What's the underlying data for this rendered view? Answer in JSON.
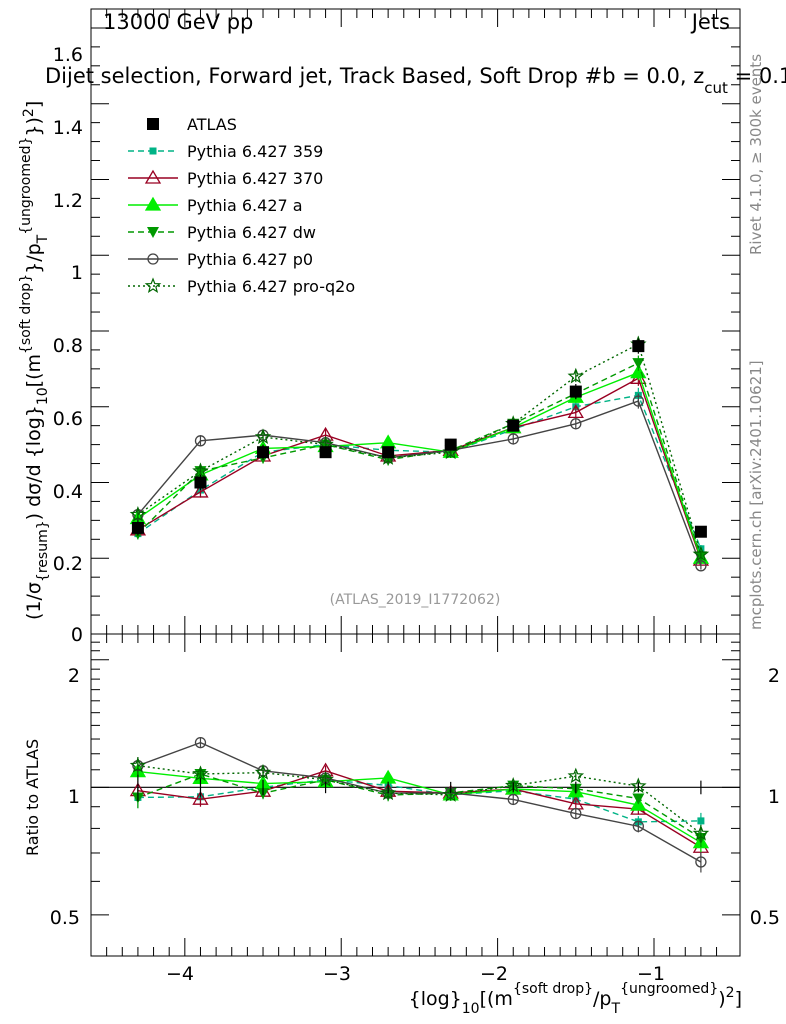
{
  "header": {
    "energy_label": "13000 GeV pp",
    "process_label": "Jets",
    "title": "Dijet selection, Forward jet, Track Based, Soft Drop #b = 0.0, z",
    "title_sub": "cut",
    "title_tail": " = 0.1",
    "analysis_id": "(ATLAS_2019_I1772062)"
  },
  "side_labels": {
    "rivet": "Rivet 4.1.0, ≥ 300k events",
    "mcplots": "mcplots.cern.ch [arXiv:2401.10621]"
  },
  "axes": {
    "xlabel": "{log}10[(m{soft drop}/pT{ungroomed})2]",
    "ylabel_main": "(1/σ{resum}) dσ/d {log}10[(m{soft drop}/pT{ungroomed})2]",
    "ylabel_ratio": "Ratio to ATLAS",
    "xticks": [
      "−4",
      "−3",
      "−2",
      "−1"
    ],
    "yticks_main": [
      "0",
      "0.2",
      "0.4",
      "0.6",
      "0.8",
      "1",
      "1.2",
      "1.4",
      "1.6"
    ],
    "yticks_ratio": [
      "0.5",
      "1",
      "2"
    ]
  },
  "colors": {
    "atlas": "#000000",
    "p359": "#00b386",
    "p370": "#990022",
    "pa": "#00ee00",
    "pdw": "#009900",
    "pp0": "#444444",
    "pq2o": "#006600"
  },
  "chart_data": {
    "type": "line",
    "title": "Dijet selection, Forward jet, Track Based, Soft Drop #b = 0.0, zcut = 0.1",
    "x": [
      -4.3,
      -3.9,
      -3.5,
      -3.1,
      -2.7,
      -2.3,
      -1.9,
      -1.5,
      -1.1,
      -0.7
    ],
    "xlim": [
      -4.6,
      -0.45
    ],
    "ylim_main": [
      0,
      1.65
    ],
    "ylim_ratio": [
      0.4,
      2.3
    ],
    "series": [
      {
        "name": "ATLAS",
        "key": "atlas",
        "values": [
          0.28,
          0.4,
          0.48,
          0.48,
          0.48,
          0.5,
          0.55,
          0.64,
          0.76,
          0.27
        ],
        "err": [
          0.02,
          0.02,
          0.02,
          0.015,
          0.015,
          0.015,
          0.015,
          0.02,
          0.02,
          0.01
        ]
      },
      {
        "name": "Pythia 6.427 359",
        "key": "p359",
        "values": [
          0.265,
          0.38,
          0.48,
          0.5,
          0.485,
          0.48,
          0.54,
          0.6,
          0.63,
          0.225
        ],
        "err": [
          0.015,
          0.015,
          0.015,
          0.015,
          0.015,
          0.015,
          0.015,
          0.015,
          0.02,
          0.01
        ]
      },
      {
        "name": "Pythia 6.427 370",
        "key": "p370",
        "values": [
          0.275,
          0.375,
          0.47,
          0.525,
          0.47,
          0.485,
          0.545,
          0.585,
          0.675,
          0.195
        ],
        "err": [
          0.015,
          0.015,
          0.015,
          0.015,
          0.015,
          0.015,
          0.015,
          0.015,
          0.02,
          0.01
        ]
      },
      {
        "name": "Pythia 6.427 a",
        "key": "pa",
        "values": [
          0.305,
          0.42,
          0.49,
          0.495,
          0.505,
          0.48,
          0.545,
          0.625,
          0.69,
          0.2
        ],
        "err": [
          0.015,
          0.015,
          0.015,
          0.015,
          0.015,
          0.015,
          0.015,
          0.015,
          0.02,
          0.01
        ]
      },
      {
        "name": "Pythia 6.427 dw",
        "key": "pdw",
        "values": [
          0.265,
          0.43,
          0.465,
          0.5,
          0.46,
          0.485,
          0.555,
          0.635,
          0.715,
          0.205
        ],
        "err": [
          0.015,
          0.015,
          0.015,
          0.015,
          0.015,
          0.015,
          0.015,
          0.015,
          0.02,
          0.01
        ]
      },
      {
        "name": "Pythia 6.427 p0",
        "key": "pp0",
        "values": [
          0.315,
          0.51,
          0.525,
          0.505,
          0.465,
          0.485,
          0.515,
          0.555,
          0.615,
          0.18
        ],
        "err": [
          0.015,
          0.015,
          0.015,
          0.015,
          0.015,
          0.015,
          0.015,
          0.015,
          0.02,
          0.01
        ]
      },
      {
        "name": "Pythia 6.427 pro-q2o",
        "key": "pq2o",
        "values": [
          0.315,
          0.43,
          0.52,
          0.5,
          0.465,
          0.48,
          0.555,
          0.68,
          0.765,
          0.21
        ],
        "err": [
          0.015,
          0.015,
          0.015,
          0.015,
          0.015,
          0.015,
          0.015,
          0.015,
          0.02,
          0.01
        ]
      }
    ]
  }
}
